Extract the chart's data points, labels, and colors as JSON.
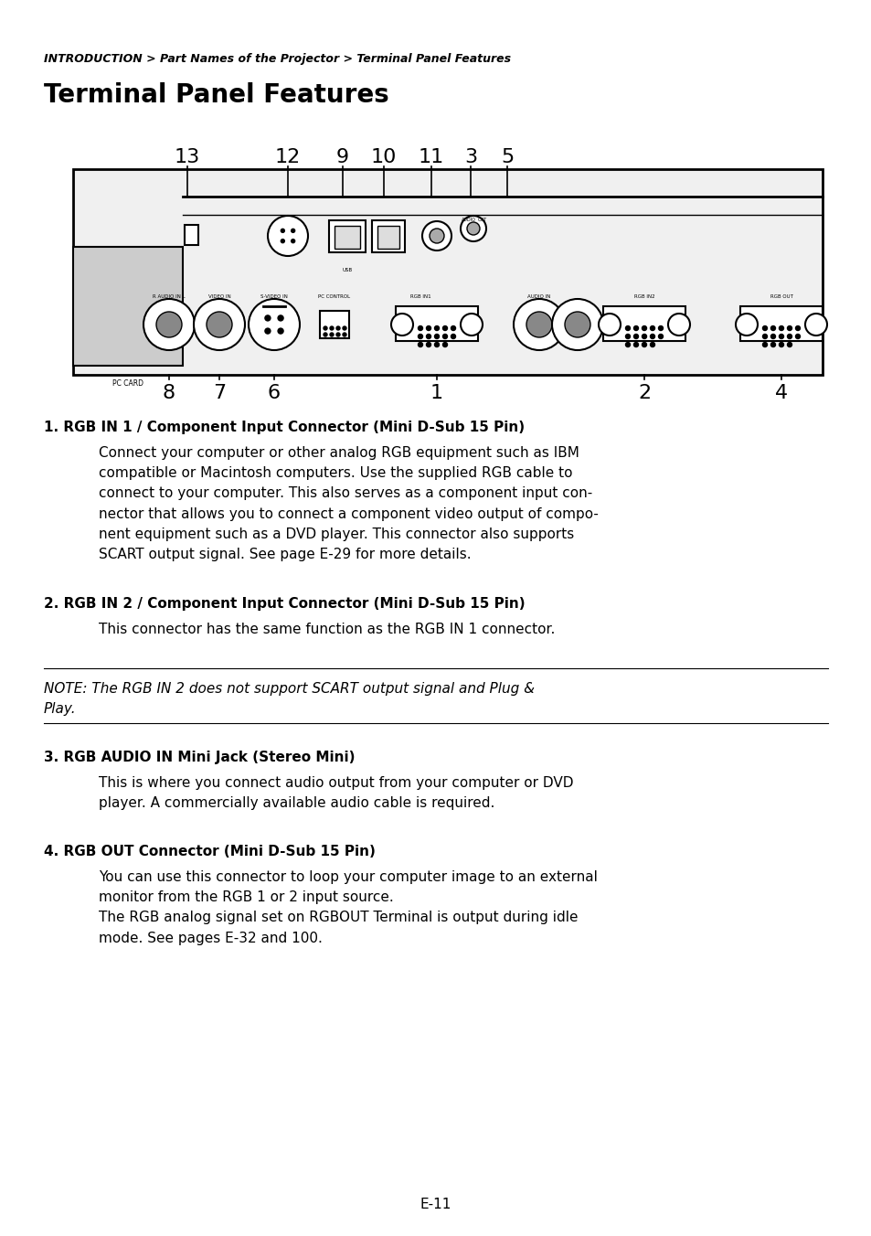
{
  "breadcrumb": "INTRODUCTION > Part Names of the Projector > Terminal Panel Features",
  "title": "Terminal Panel Features",
  "page_number": "E-11",
  "background_color": "#ffffff",
  "text_color": "#000000",
  "items": [
    {
      "number": "1",
      "heading": "RGB IN 1 / Component Input Connector (Mini D-Sub 15 Pin)",
      "body": "Connect your computer or other analog RGB equipment such as IBM compatible or Macintosh computers. Use the supplied RGB cable to connect to your computer. This also serves as a component input connector that allows you to connect a component video output of component equipment such as a DVD player. This connector also supports SCART output signal. See page E-29 for more details."
    },
    {
      "number": "2",
      "heading": "RGB IN 2 / Component Input Connector (Mini D-Sub 15 Pin)",
      "body": "This connector has the same function as the RGB IN 1 connector."
    },
    {
      "number": "3",
      "heading": "RGB AUDIO IN Mini Jack (Stereo Mini)",
      "body": "This is where you connect audio output from your computer or DVD player. A commercially available audio cable is required."
    },
    {
      "number": "4",
      "heading": "RGB OUT Connector (Mini D-Sub 15 Pin)",
      "body": "You can use this connector to loop your computer image to an external monitor from the RGB 1 or 2 input source.\nThe RGB analog signal set on RGBOUT Terminal is output during idle mode. See pages E-32 and 100."
    }
  ],
  "note_text": "NOTE: The RGB IN 2 does not support SCART output signal and Plug &\nPlay.",
  "top_labels": [
    "13",
    "12",
    "9",
    "10",
    "11",
    "3",
    "5"
  ],
  "bottom_labels": [
    "8",
    "7",
    "6",
    "1",
    "2",
    "4"
  ]
}
